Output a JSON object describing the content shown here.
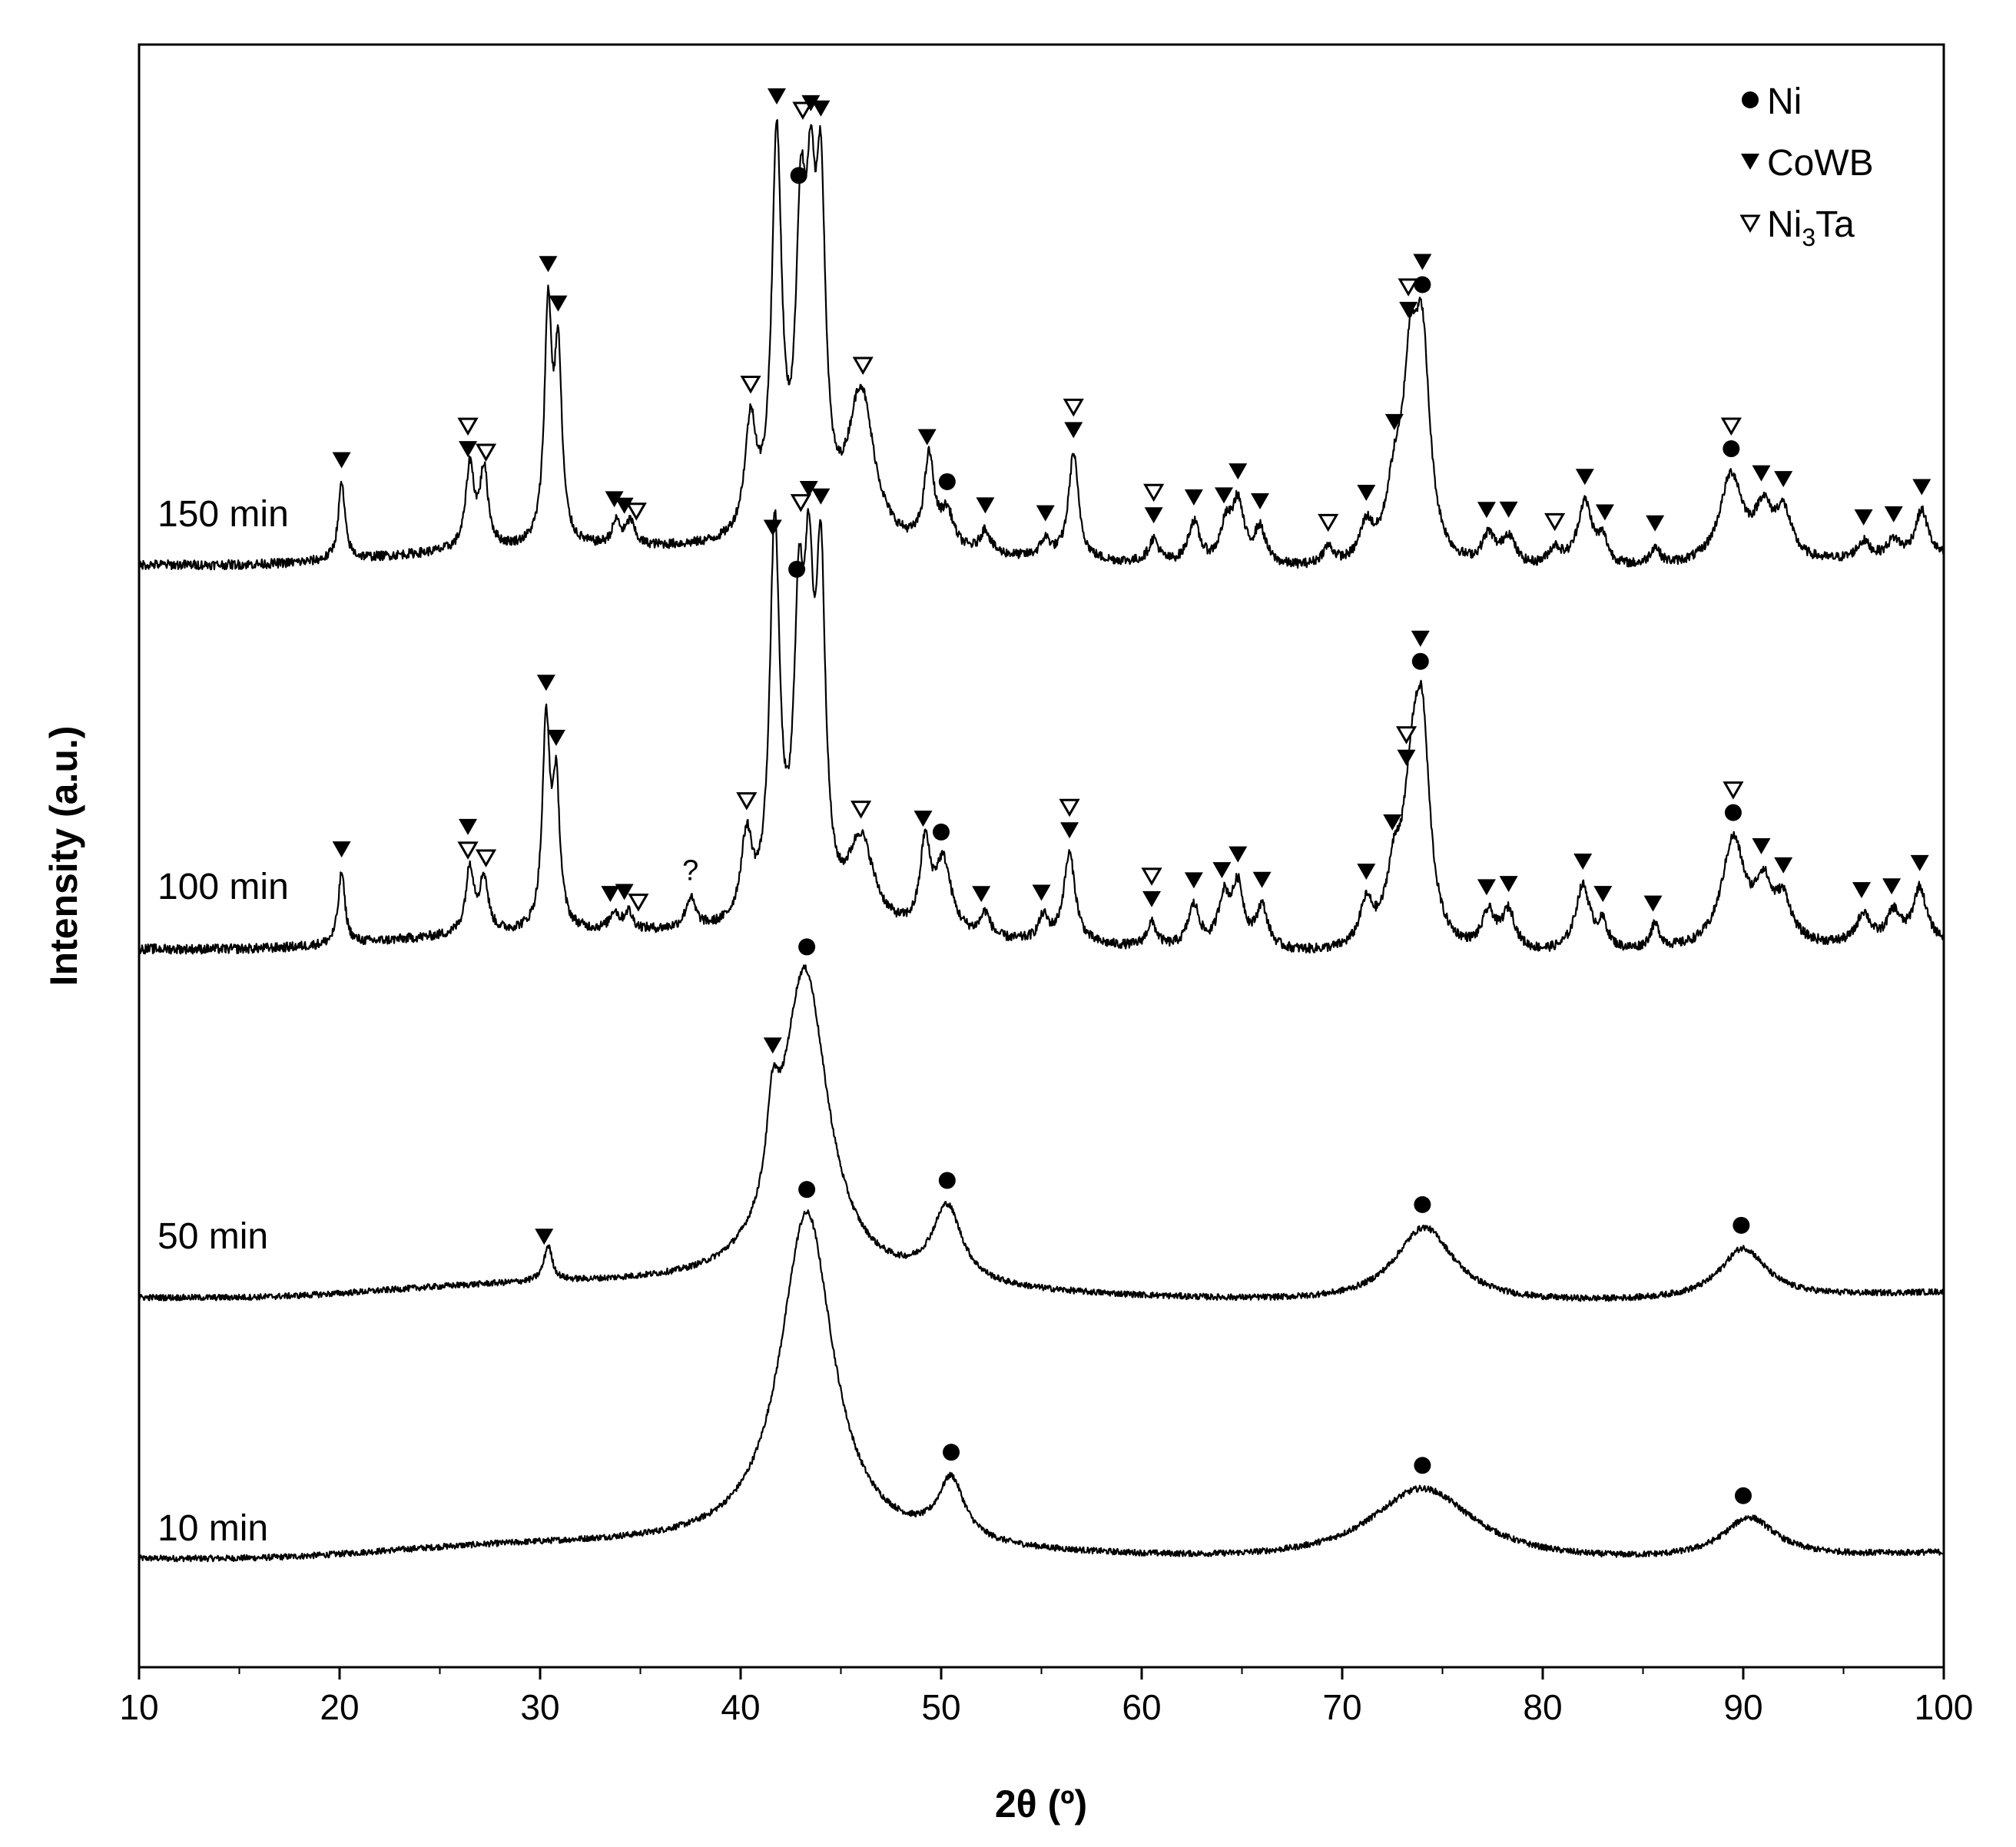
{
  "chart_data": {
    "type": "line",
    "xlabel": "2θ (º)",
    "ylabel": "Intensity (a.u.)",
    "xlim": [
      10,
      100
    ],
    "x_ticks": [
      10,
      20,
      30,
      40,
      50,
      60,
      70,
      80,
      90,
      100
    ],
    "y_ticks_shown": false,
    "grid": false,
    "legend_placement": "top-right",
    "legend": [
      {
        "marker": "filled-circle",
        "label": "Ni"
      },
      {
        "marker": "filled-triangle-down",
        "label": "CoWB"
      },
      {
        "marker": "open-triangle-down",
        "label": "Ni",
        "sub": "3",
        "suffix": "Ta"
      }
    ],
    "series": [
      {
        "name": "10 min",
        "baseline": 0.2,
        "noise": 0.012,
        "peaks": [
          {
            "x": 43.3,
            "height": 1.32,
            "width": 1.6
          },
          {
            "x": 50.5,
            "height": 0.24,
            "width": 0.8
          },
          {
            "x": 74.0,
            "height": 0.3,
            "width": 3.2
          },
          {
            "x": 90.3,
            "height": 0.16,
            "width": 1.6
          }
        ],
        "markers": [
          {
            "x": 43.3,
            "phase": "Ni"
          },
          {
            "x": 50.5,
            "phase": "Ni"
          },
          {
            "x": 74.0,
            "phase": "Ni"
          },
          {
            "x": 90.0,
            "phase": "Ni"
          }
        ]
      },
      {
        "name": "50 min",
        "baseline": 0.2,
        "noise": 0.012,
        "peaks": [
          {
            "x": 41.6,
            "height": 0.32,
            "width": 0.35
          },
          {
            "x": 43.2,
            "height": 1.24,
            "width": 1.4
          },
          {
            "x": 50.3,
            "height": 0.3,
            "width": 0.9
          },
          {
            "x": 74.1,
            "height": 0.3,
            "width": 1.8
          },
          {
            "x": 90.0,
            "height": 0.2,
            "width": 1.4
          },
          {
            "x": 30.4,
            "height": 0.14,
            "width": 0.25
          }
        ],
        "markers": [
          {
            "x": 30.2,
            "phase": "CoWB"
          },
          {
            "x": 41.6,
            "phase": "CoWB"
          },
          {
            "x": 43.3,
            "phase": "Ni"
          },
          {
            "x": 50.3,
            "phase": "Ni"
          },
          {
            "x": 74.0,
            "phase": "Ni"
          },
          {
            "x": 89.9,
            "phase": "Ni"
          }
        ]
      },
      {
        "name": "100 min",
        "baseline": 0.2,
        "noise": 0.016,
        "peaks": [
          {
            "x": 20.1,
            "height": 0.24,
            "width": 0.2
          },
          {
            "x": 26.5,
            "height": 0.22,
            "width": 0.25
          },
          {
            "x": 27.2,
            "height": 0.18,
            "width": 0.25
          },
          {
            "x": 30.3,
            "height": 0.68,
            "width": 0.22
          },
          {
            "x": 30.8,
            "height": 0.46,
            "width": 0.22
          },
          {
            "x": 33.7,
            "height": 0.06,
            "width": 0.25
          },
          {
            "x": 34.4,
            "height": 0.06,
            "width": 0.25
          },
          {
            "x": 37.5,
            "height": 0.1,
            "width": 0.3
          },
          {
            "x": 40.3,
            "height": 0.28,
            "width": 0.35
          },
          {
            "x": 41.7,
            "height": 1.3,
            "width": 0.3
          },
          {
            "x": 42.9,
            "height": 0.88,
            "width": 0.3
          },
          {
            "x": 43.4,
            "height": 0.92,
            "width": 0.3
          },
          {
            "x": 44.0,
            "height": 1.08,
            "width": 0.28
          },
          {
            "x": 46.0,
            "height": 0.3,
            "width": 0.8
          },
          {
            "x": 49.2,
            "height": 0.28,
            "width": 0.3
          },
          {
            "x": 50.1,
            "height": 0.24,
            "width": 0.5
          },
          {
            "x": 52.2,
            "height": 0.08,
            "width": 0.3
          },
          {
            "x": 55.1,
            "height": 0.08,
            "width": 0.3
          },
          {
            "x": 56.4,
            "height": 0.3,
            "width": 0.35
          },
          {
            "x": 60.5,
            "height": 0.08,
            "width": 0.3
          },
          {
            "x": 62.6,
            "height": 0.14,
            "width": 0.35
          },
          {
            "x": 64.1,
            "height": 0.16,
            "width": 0.35
          },
          {
            "x": 64.8,
            "height": 0.2,
            "width": 0.35
          },
          {
            "x": 66.0,
            "height": 0.14,
            "width": 0.35
          },
          {
            "x": 71.2,
            "height": 0.14,
            "width": 0.4
          },
          {
            "x": 72.6,
            "height": 0.22,
            "width": 0.5
          },
          {
            "x": 73.5,
            "height": 0.46,
            "width": 0.5
          },
          {
            "x": 74.0,
            "height": 0.62,
            "width": 0.45
          },
          {
            "x": 77.3,
            "height": 0.12,
            "width": 0.4
          },
          {
            "x": 78.3,
            "height": 0.13,
            "width": 0.4
          },
          {
            "x": 82.0,
            "height": 0.22,
            "width": 0.45
          },
          {
            "x": 83.0,
            "height": 0.08,
            "width": 0.3
          },
          {
            "x": 85.6,
            "height": 0.08,
            "width": 0.3
          },
          {
            "x": 89.5,
            "height": 0.36,
            "width": 0.7
          },
          {
            "x": 91.0,
            "height": 0.18,
            "width": 0.5
          },
          {
            "x": 92.0,
            "height": 0.14,
            "width": 0.5
          },
          {
            "x": 96.0,
            "height": 0.1,
            "width": 0.4
          },
          {
            "x": 97.5,
            "height": 0.1,
            "width": 0.4
          },
          {
            "x": 98.8,
            "height": 0.18,
            "width": 0.4
          }
        ],
        "markers": [
          {
            "x": 20.1,
            "phase": "CoWB"
          },
          {
            "x": 26.4,
            "phase": "Ni3Ta"
          },
          {
            "x": 26.4,
            "phase": "CoWB",
            "stack": 1
          },
          {
            "x": 27.3,
            "phase": "Ni3Ta"
          },
          {
            "x": 30.3,
            "phase": "CoWB"
          },
          {
            "x": 30.8,
            "phase": "CoWB"
          },
          {
            "x": 33.5,
            "phase": "CoWB"
          },
          {
            "x": 34.2,
            "phase": "CoWB"
          },
          {
            "x": 34.9,
            "phase": "Ni3Ta"
          },
          {
            "x": 40.3,
            "phase": "Ni3Ta"
          },
          {
            "x": 41.6,
            "phase": "CoWB"
          },
          {
            "x": 42.8,
            "phase": "Ni"
          },
          {
            "x": 43.0,
            "phase": "Ni3Ta",
            "stack": 1
          },
          {
            "x": 43.4,
            "phase": "CoWB"
          },
          {
            "x": 44.0,
            "phase": "CoWB"
          },
          {
            "x": 46.0,
            "phase": "Ni3Ta"
          },
          {
            "x": 49.1,
            "phase": "CoWB"
          },
          {
            "x": 50.0,
            "phase": "Ni"
          },
          {
            "x": 52.0,
            "phase": "CoWB"
          },
          {
            "x": 55.0,
            "phase": "CoWB"
          },
          {
            "x": 56.4,
            "phase": "CoWB"
          },
          {
            "x": 56.4,
            "phase": "Ni3Ta",
            "stack": 1
          },
          {
            "x": 60.5,
            "phase": "CoWB"
          },
          {
            "x": 60.5,
            "phase": "Ni3Ta",
            "stack": 1
          },
          {
            "x": 62.6,
            "phase": "CoWB"
          },
          {
            "x": 64.0,
            "phase": "CoWB"
          },
          {
            "x": 64.8,
            "phase": "CoWB"
          },
          {
            "x": 66.0,
            "phase": "CoWB"
          },
          {
            "x": 71.2,
            "phase": "CoWB"
          },
          {
            "x": 72.5,
            "phase": "CoWB"
          },
          {
            "x": 73.2,
            "phase": "CoWB"
          },
          {
            "x": 73.2,
            "phase": "Ni3Ta",
            "stack": 1
          },
          {
            "x": 73.9,
            "phase": "Ni"
          },
          {
            "x": 73.9,
            "phase": "CoWB",
            "stack": 1
          },
          {
            "x": 77.2,
            "phase": "CoWB"
          },
          {
            "x": 78.3,
            "phase": "CoWB"
          },
          {
            "x": 82.0,
            "phase": "CoWB"
          },
          {
            "x": 83.0,
            "phase": "CoWB"
          },
          {
            "x": 85.5,
            "phase": "CoWB"
          },
          {
            "x": 89.5,
            "phase": "Ni"
          },
          {
            "x": 89.5,
            "phase": "Ni3Ta",
            "stack": 1
          },
          {
            "x": 90.9,
            "phase": "CoWB"
          },
          {
            "x": 92.0,
            "phase": "CoWB"
          },
          {
            "x": 95.9,
            "phase": "CoWB"
          },
          {
            "x": 97.4,
            "phase": "CoWB"
          },
          {
            "x": 98.8,
            "phase": "CoWB"
          }
        ],
        "unknown_marks": [
          {
            "x": 37.5,
            "text": "?"
          }
        ]
      },
      {
        "name": "150 min",
        "baseline": 0.2,
        "noise": 0.016,
        "peaks": [
          {
            "x": 20.1,
            "height": 0.26,
            "width": 0.2
          },
          {
            "x": 26.5,
            "height": 0.28,
            "width": 0.25
          },
          {
            "x": 27.2,
            "height": 0.26,
            "width": 0.25
          },
          {
            "x": 30.4,
            "height": 0.78,
            "width": 0.22
          },
          {
            "x": 30.9,
            "height": 0.62,
            "width": 0.22
          },
          {
            "x": 33.8,
            "height": 0.08,
            "width": 0.25
          },
          {
            "x": 34.5,
            "height": 0.08,
            "width": 0.25
          },
          {
            "x": 40.5,
            "height": 0.38,
            "width": 0.35
          },
          {
            "x": 41.8,
            "height": 1.32,
            "width": 0.3
          },
          {
            "x": 43.0,
            "height": 0.92,
            "width": 0.3
          },
          {
            "x": 43.5,
            "height": 0.86,
            "width": 0.3
          },
          {
            "x": 44.0,
            "height": 1.02,
            "width": 0.28
          },
          {
            "x": 46.0,
            "height": 0.52,
            "width": 0.8
          },
          {
            "x": 49.4,
            "height": 0.3,
            "width": 0.3
          },
          {
            "x": 50.3,
            "height": 0.12,
            "width": 0.4
          },
          {
            "x": 52.2,
            "height": 0.08,
            "width": 0.3
          },
          {
            "x": 55.2,
            "height": 0.06,
            "width": 0.3
          },
          {
            "x": 56.6,
            "height": 0.36,
            "width": 0.3
          },
          {
            "x": 60.6,
            "height": 0.08,
            "width": 0.3
          },
          {
            "x": 62.6,
            "height": 0.14,
            "width": 0.35
          },
          {
            "x": 64.2,
            "height": 0.12,
            "width": 0.35
          },
          {
            "x": 64.8,
            "height": 0.2,
            "width": 0.35
          },
          {
            "x": 65.9,
            "height": 0.12,
            "width": 0.35
          },
          {
            "x": 69.3,
            "height": 0.06,
            "width": 0.35
          },
          {
            "x": 71.2,
            "height": 0.12,
            "width": 0.4
          },
          {
            "x": 72.6,
            "height": 0.22,
            "width": 0.5
          },
          {
            "x": 73.4,
            "height": 0.56,
            "width": 0.45
          },
          {
            "x": 74.0,
            "height": 0.66,
            "width": 0.45
          },
          {
            "x": 77.3,
            "height": 0.1,
            "width": 0.4
          },
          {
            "x": 78.3,
            "height": 0.1,
            "width": 0.4
          },
          {
            "x": 80.6,
            "height": 0.06,
            "width": 0.4
          },
          {
            "x": 82.1,
            "height": 0.22,
            "width": 0.45
          },
          {
            "x": 83.0,
            "height": 0.08,
            "width": 0.3
          },
          {
            "x": 85.6,
            "height": 0.06,
            "width": 0.3
          },
          {
            "x": 89.4,
            "height": 0.3,
            "width": 0.7
          },
          {
            "x": 91.0,
            "height": 0.16,
            "width": 0.5
          },
          {
            "x": 92.0,
            "height": 0.16,
            "width": 0.5
          },
          {
            "x": 96.0,
            "height": 0.06,
            "width": 0.4
          },
          {
            "x": 97.5,
            "height": 0.06,
            "width": 0.4
          },
          {
            "x": 98.9,
            "height": 0.16,
            "width": 0.4
          }
        ],
        "markers": [
          {
            "x": 20.1,
            "phase": "CoWB"
          },
          {
            "x": 26.4,
            "phase": "CoWB"
          },
          {
            "x": 26.4,
            "phase": "Ni3Ta",
            "stack": 1
          },
          {
            "x": 27.3,
            "phase": "Ni3Ta"
          },
          {
            "x": 30.4,
            "phase": "CoWB"
          },
          {
            "x": 30.9,
            "phase": "CoWB"
          },
          {
            "x": 33.7,
            "phase": "CoWB"
          },
          {
            "x": 34.2,
            "phase": "CoWB"
          },
          {
            "x": 34.8,
            "phase": "Ni3Ta"
          },
          {
            "x": 40.5,
            "phase": "Ni3Ta"
          },
          {
            "x": 41.8,
            "phase": "CoWB"
          },
          {
            "x": 42.9,
            "phase": "Ni"
          },
          {
            "x": 43.1,
            "phase": "Ni3Ta",
            "stack": 1
          },
          {
            "x": 43.5,
            "phase": "CoWB"
          },
          {
            "x": 44.0,
            "phase": "CoWB"
          },
          {
            "x": 46.1,
            "phase": "Ni3Ta"
          },
          {
            "x": 49.3,
            "phase": "CoWB"
          },
          {
            "x": 50.3,
            "phase": "Ni"
          },
          {
            "x": 52.2,
            "phase": "CoWB"
          },
          {
            "x": 55.2,
            "phase": "CoWB"
          },
          {
            "x": 56.6,
            "phase": "CoWB"
          },
          {
            "x": 56.6,
            "phase": "Ni3Ta",
            "stack": 1
          },
          {
            "x": 60.6,
            "phase": "CoWB"
          },
          {
            "x": 60.6,
            "phase": "Ni3Ta",
            "stack": 1
          },
          {
            "x": 62.6,
            "phase": "CoWB"
          },
          {
            "x": 64.1,
            "phase": "CoWB"
          },
          {
            "x": 64.8,
            "phase": "CoWB"
          },
          {
            "x": 65.9,
            "phase": "CoWB"
          },
          {
            "x": 69.3,
            "phase": "Ni3Ta"
          },
          {
            "x": 71.2,
            "phase": "CoWB"
          },
          {
            "x": 72.6,
            "phase": "CoWB"
          },
          {
            "x": 73.3,
            "phase": "CoWB"
          },
          {
            "x": 73.3,
            "phase": "Ni3Ta",
            "stack": 1
          },
          {
            "x": 74.0,
            "phase": "Ni"
          },
          {
            "x": 74.0,
            "phase": "CoWB",
            "stack": 1
          },
          {
            "x": 77.2,
            "phase": "CoWB"
          },
          {
            "x": 78.3,
            "phase": "CoWB"
          },
          {
            "x": 80.6,
            "phase": "Ni3Ta"
          },
          {
            "x": 82.1,
            "phase": "CoWB"
          },
          {
            "x": 83.1,
            "phase": "CoWB"
          },
          {
            "x": 85.6,
            "phase": "CoWB"
          },
          {
            "x": 89.4,
            "phase": "Ni"
          },
          {
            "x": 89.4,
            "phase": "Ni3Ta",
            "stack": 1
          },
          {
            "x": 90.9,
            "phase": "CoWB"
          },
          {
            "x": 92.0,
            "phase": "CoWB"
          },
          {
            "x": 96.0,
            "phase": "CoWB"
          },
          {
            "x": 97.5,
            "phase": "CoWB"
          },
          {
            "x": 98.9,
            "phase": "CoWB"
          }
        ]
      }
    ]
  }
}
